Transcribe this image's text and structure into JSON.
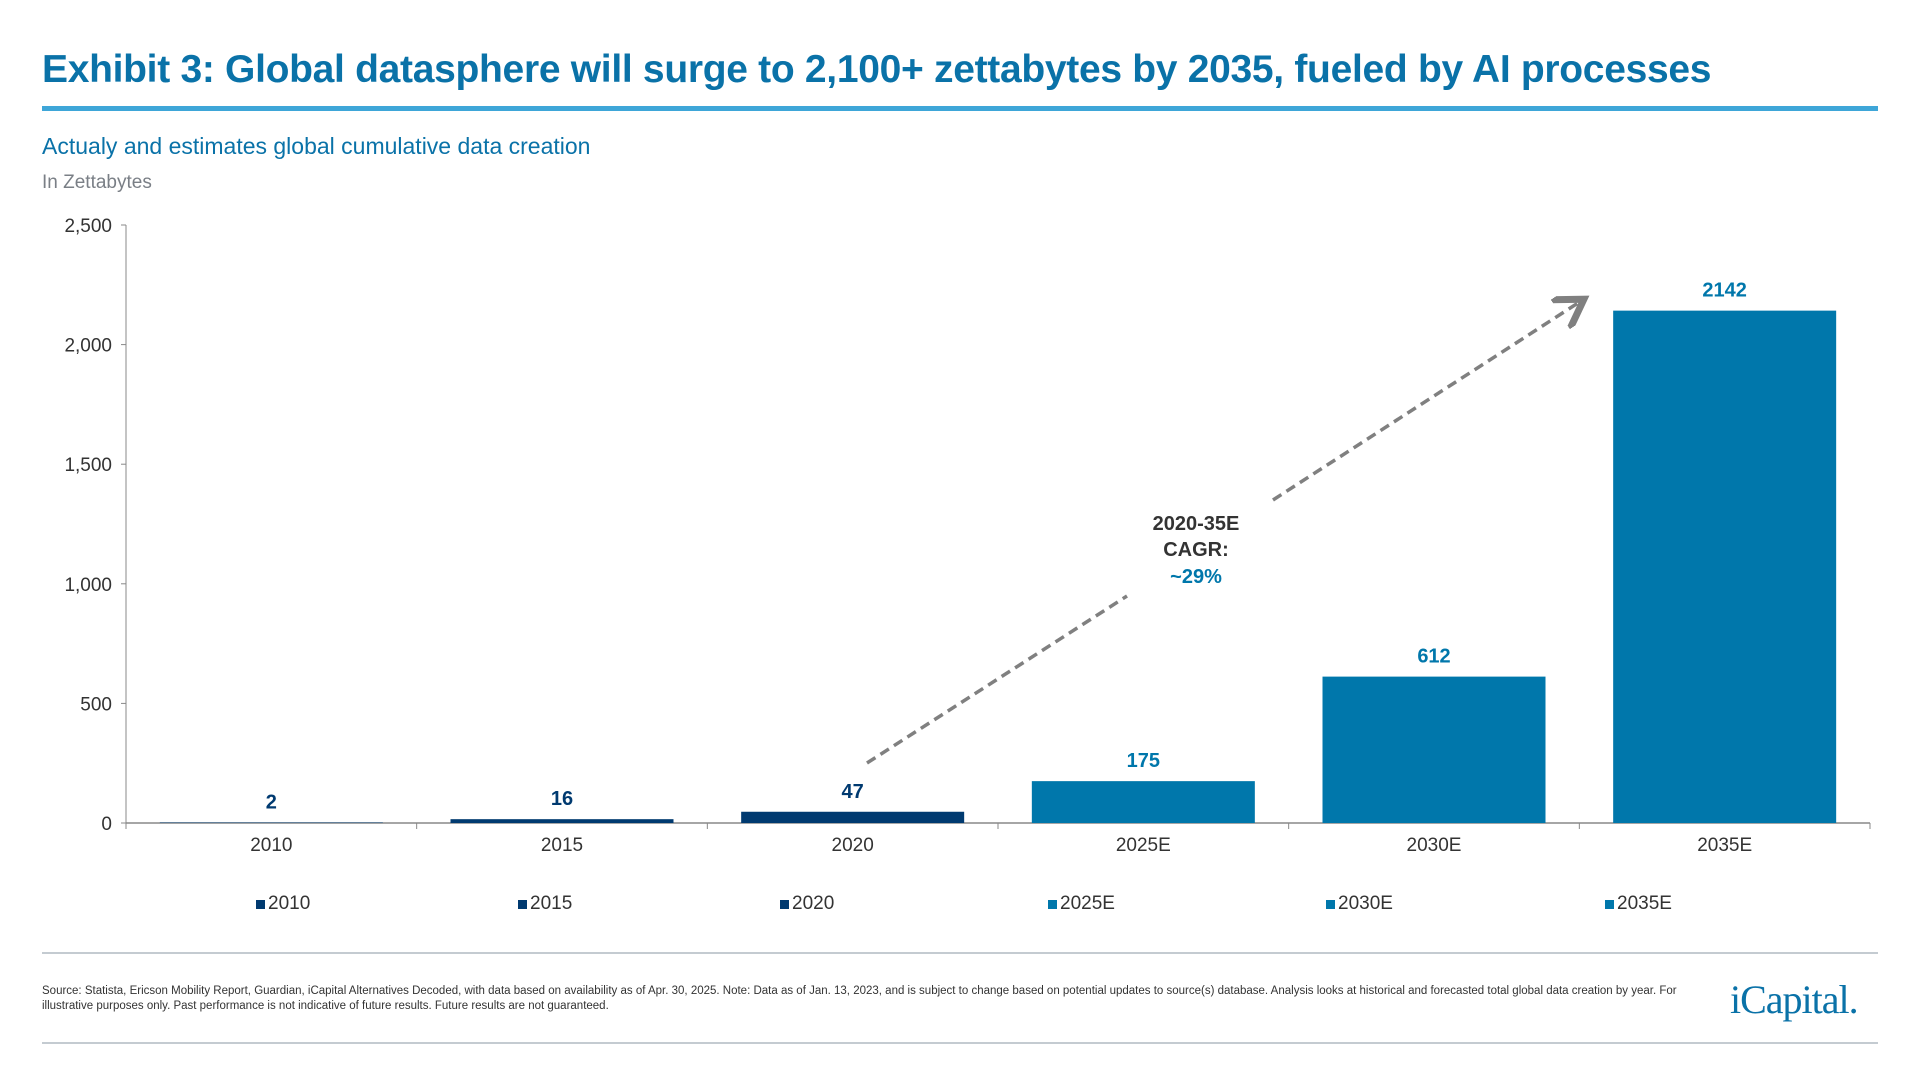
{
  "header": {
    "title": "Exhibit 3: Global datasphere will surge to 2,100+ zettabytes by 2035, fueled by AI processes",
    "subtitle": "Actualy and estimates global cumulative data creation",
    "unit": "In Zettabytes"
  },
  "chart_data": {
    "type": "bar",
    "categories": [
      "2010",
      "2015",
      "2020",
      "2025E",
      "2030E",
      "2035E"
    ],
    "values": [
      2,
      16,
      47,
      175,
      612,
      2142
    ],
    "data_labels": [
      "2",
      "16",
      "47",
      "175",
      "612",
      "2142"
    ],
    "ylim": [
      0,
      2500
    ],
    "yticks": [
      0,
      500,
      1000,
      1500,
      2000,
      2500
    ],
    "ytick_labels": [
      "0",
      "500",
      "1,000",
      "1,500",
      "2,000",
      "2,500"
    ],
    "grid": false,
    "legend": [
      "2010",
      "2015",
      "2020",
      "2025E",
      "2030E",
      "2035E"
    ],
    "legend_placement": "bottom",
    "colors": {
      "actual": "#003a70",
      "estimate": "#0077ab"
    },
    "is_estimate": [
      false,
      false,
      false,
      true,
      true,
      true
    ],
    "annotation": {
      "line1": "2020-35E",
      "line2": "CAGR:",
      "line3": "~29%",
      "arrow_color": "#808080"
    }
  },
  "footer": {
    "source": "Source: Statista, Ericson Mobility Report, Guardian, iCapital Alternatives Decoded, with data based on availability as of Apr. 30, 2025. Note: Data as of Jan. 13, 2023, and is subject to change based on potential updates to source(s) database. Analysis looks at historical and forecasted total global data creation by year. For illustrative purposes only. Past performance is not indicative of future results. Future results are not guaranteed.",
    "logo": "iCapital."
  }
}
